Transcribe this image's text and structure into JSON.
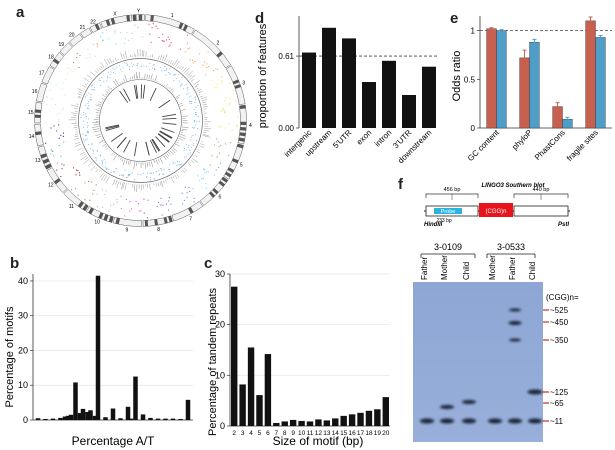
{
  "panels": {
    "a": "a",
    "b": "b",
    "c": "c",
    "d": "d",
    "e": "e",
    "f": "f"
  },
  "circos": {
    "chromosomes": [
      "1",
      "2",
      "3",
      "4",
      "5",
      "6",
      "7",
      "8",
      "9",
      "10",
      "11",
      "12",
      "13",
      "14",
      "15",
      "16",
      "17",
      "18",
      "19",
      "20",
      "21",
      "22",
      "X",
      "Y"
    ],
    "colors": [
      "#e6194b",
      "#f58231",
      "#ffe119",
      "#bfef45",
      "#3cb44b",
      "#42d4f4",
      "#4363d8",
      "#911eb4",
      "#f032e6",
      "#a9a9a9",
      "#9a6324",
      "#800000",
      "#469990",
      "#000075",
      "#e6beff",
      "#fabebe",
      "#aaffc3",
      "#ffd8b1",
      "#808000",
      "#dcbeff",
      "#ff7f50",
      "#40e0d0",
      "#87ceeb",
      "#c0c0c0"
    ]
  },
  "chart_data": [
    {
      "id": "b",
      "type": "bar",
      "xlabel": "Percentage A/T",
      "ylabel": "Percentage of motifs",
      "ylim": [
        0,
        42
      ],
      "yticks": [
        0,
        10,
        20,
        30,
        40
      ],
      "x": [
        0,
        5,
        10,
        15,
        18,
        20,
        22,
        25,
        28,
        30,
        33,
        35,
        38,
        40,
        45,
        50,
        55,
        60,
        62,
        65,
        70,
        75,
        80,
        85,
        90,
        95,
        100
      ],
      "values": [
        0.5,
        0.3,
        0.4,
        0.6,
        1.0,
        1.2,
        1.5,
        10.8,
        2.0,
        3.2,
        2.3,
        2.8,
        1.2,
        41.5,
        0.8,
        3.3,
        0.5,
        3.8,
        0.4,
        12.5,
        1.6,
        0.6,
        0.4,
        0.4,
        0.4,
        0.3,
        5.8
      ]
    },
    {
      "id": "c",
      "type": "bar",
      "xlabel": "Size of motif (bp)",
      "ylabel": "Percentage of tandem repeats",
      "ylim": [
        0,
        30
      ],
      "yticks": [
        0,
        10,
        20,
        30
      ],
      "categories": [
        "2",
        "3",
        "4",
        "5",
        "6",
        "7",
        "8",
        "9",
        "10",
        "11",
        "12",
        "13",
        "14",
        "15",
        "16",
        "17",
        "18",
        "19",
        "20"
      ],
      "values": [
        27.5,
        8.2,
        15.5,
        6.1,
        14.2,
        0.6,
        0.9,
        1.2,
        1.0,
        0.9,
        1.3,
        1.1,
        1.5,
        2.0,
        2.3,
        2.6,
        3.0,
        3.3,
        5.7
      ]
    },
    {
      "id": "d",
      "type": "bar",
      "ylabel": "proportion of features",
      "ylim": [
        0,
        0.95
      ],
      "yticks": [
        0.0,
        0.61
      ],
      "ytick_labels": [
        "0.00",
        "0.61"
      ],
      "refline": 0.61,
      "categories": [
        "intergenic",
        "upstream",
        "5'UTR",
        "exon",
        "intron",
        "3'UTR",
        "downstream"
      ],
      "values": [
        0.64,
        0.85,
        0.76,
        0.39,
        0.57,
        0.28,
        0.52
      ]
    },
    {
      "id": "e",
      "type": "bar",
      "ylabel": "Odds ratio",
      "ylim": [
        0,
        1.15
      ],
      "yticks": [
        0.0,
        0.5,
        1.0
      ],
      "refline": 1.0,
      "categories": [
        "GC content",
        "phyloP",
        "PhastCons",
        "fragile sites"
      ],
      "series": [
        {
          "color": "#c8604f",
          "values": [
            1.02,
            0.72,
            0.22,
            1.1
          ],
          "err": [
            0.01,
            0.08,
            0.04,
            0.04
          ]
        },
        {
          "color": "#4f9ec9",
          "values": [
            1.0,
            0.88,
            0.09,
            0.93
          ],
          "err": [
            0.01,
            0.03,
            0.02,
            0.02
          ]
        }
      ]
    }
  ],
  "gene_map": {
    "title": "LINGO3 Southern blot",
    "left_size": "456 bp",
    "right_size": "440 bp",
    "probe_label": "Probe",
    "probe_size": "233 bp",
    "repeat_label": "(CGG)n",
    "left_site": "HindIII",
    "right_site": "PstI"
  },
  "blot": {
    "families": [
      "3-0109",
      "3-0533"
    ],
    "lanes": [
      "Father",
      "Mother",
      "Child",
      "Mother",
      "Father",
      "Child"
    ],
    "size_header": "(CGG)n=",
    "sizes": [
      "~525",
      "~450",
      "~350",
      "~125",
      "~65",
      "~11"
    ]
  }
}
